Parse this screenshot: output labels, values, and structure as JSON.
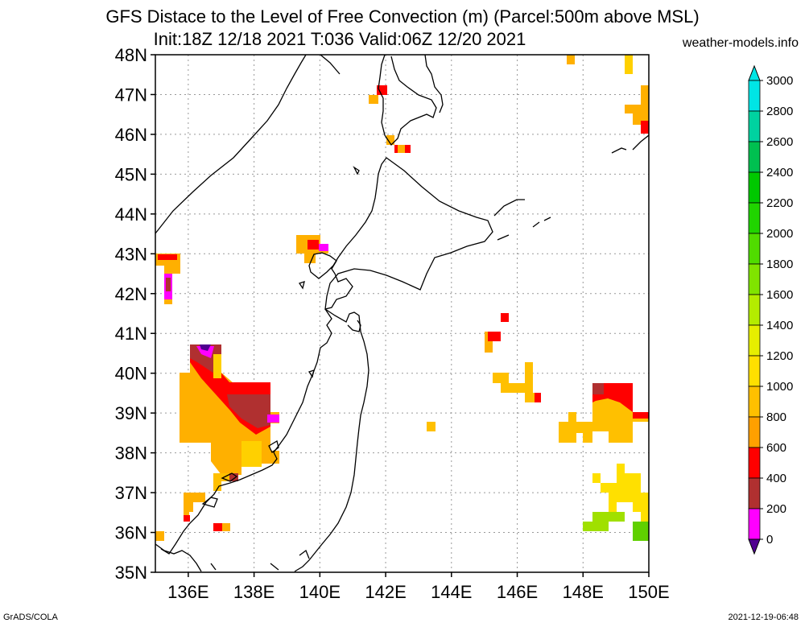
{
  "header": {
    "title_line1": "GFS Distace to the Level of Free Convection (m) (Parcel:500m above MSL)",
    "title_line2": "Init:18Z 12/18 2021 T:036 Valid:06Z 12/20 2021",
    "site": "weather-models.info"
  },
  "footer": {
    "left": "GrADS/COLA",
    "right": "2021-12-19-06:48"
  },
  "map": {
    "lat_labels": [
      "48N",
      "47N",
      "46N",
      "45N",
      "44N",
      "43N",
      "42N",
      "41N",
      "40N",
      "39N",
      "38N",
      "37N",
      "36N",
      "35N"
    ],
    "lon_labels": [
      "136E",
      "138E",
      "140E",
      "142E",
      "144E",
      "146E",
      "148E",
      "150E"
    ]
  },
  "colorbar": {
    "labels": [
      "3000",
      "2800",
      "2600",
      "2400",
      "2200",
      "2000",
      "1800",
      "1600",
      "1400",
      "1200",
      "1000",
      "800",
      "600",
      "400",
      "200",
      "0"
    ],
    "colors": [
      "#00e5e5",
      "#00d2a0",
      "#00c050",
      "#00c800",
      "#20d400",
      "#50dc00",
      "#80e400",
      "#b4ec00",
      "#e6ee00",
      "#ffe000",
      "#ffc000",
      "#ffa000",
      "#ff0000",
      "#b03030",
      "#ff00ff",
      "#500090"
    ]
  }
}
